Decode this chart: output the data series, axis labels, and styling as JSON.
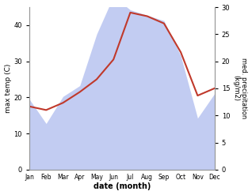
{
  "months": [
    "Jan",
    "Feb",
    "Mar",
    "Apr",
    "May",
    "Jun",
    "Jul",
    "Aug",
    "Sep",
    "Oct",
    "Nov",
    "Dec"
  ],
  "month_x": [
    0,
    1,
    2,
    3,
    4,
    5,
    6,
    7,
    8,
    9,
    10,
    11
  ],
  "temp": [
    17.5,
    16.5,
    18.5,
    21.5,
    25.0,
    30.5,
    43.5,
    42.5,
    40.5,
    32.5,
    20.5,
    22.5
  ],
  "precip_kg": [
    13.0,
    8.5,
    13.5,
    15.5,
    25.0,
    32.0,
    29.5,
    28.5,
    27.5,
    21.0,
    9.5,
    14.0
  ],
  "temp_color": "#c0392b",
  "precip_fill_color": "#b8c4f0",
  "precip_fill_alpha": 0.85,
  "ylabel_left": "max temp (C)",
  "ylabel_right": "med. precipitation\n(kg/m2)",
  "xlabel": "date (month)",
  "ylim_left": [
    0,
    45
  ],
  "ylim_right": [
    0,
    30
  ],
  "yticks_left": [
    0,
    10,
    20,
    30,
    40
  ],
  "yticks_right": [
    0,
    5,
    10,
    15,
    20,
    25,
    30
  ],
  "bg_color": "#ffffff",
  "spine_color": "#999999"
}
